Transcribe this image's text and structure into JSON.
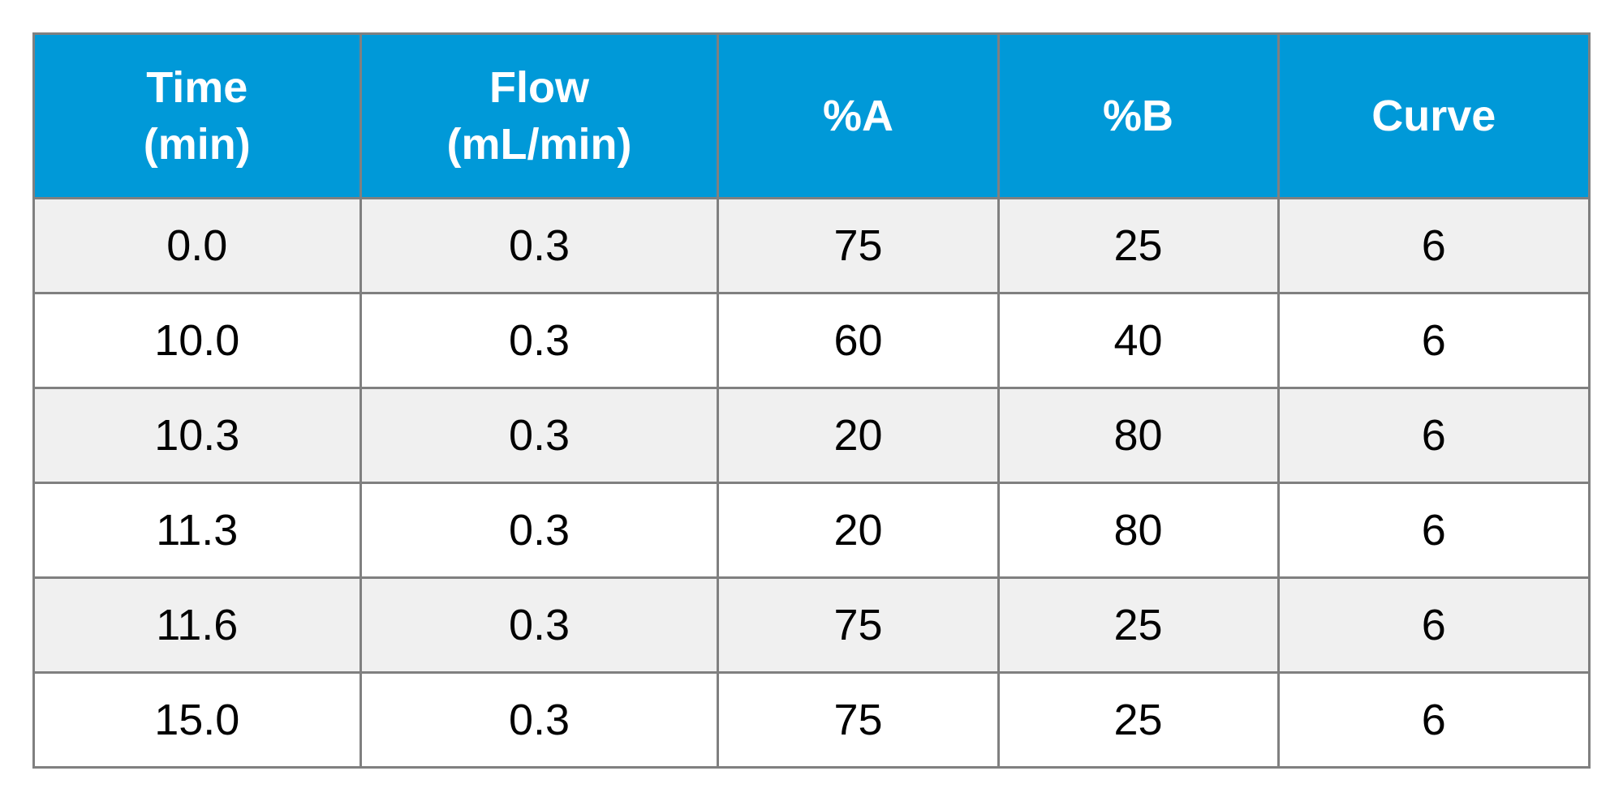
{
  "table": {
    "type": "table",
    "header_bg_color": "#0099d8",
    "header_text_color": "#ffffff",
    "header_font_size": 54,
    "header_font_weight": "bold",
    "cell_font_size": 54,
    "cell_text_color": "#000000",
    "row_odd_bg": "#f0f0f0",
    "row_even_bg": "#ffffff",
    "border_color": "#808080",
    "border_width": 3,
    "column_widths_pct": [
      21,
      23,
      18,
      18,
      20
    ],
    "columns": [
      "Time\n(min)",
      "Flow\n(mL/min)",
      "%A",
      "%B",
      "Curve"
    ],
    "rows": [
      [
        "0.0",
        "0.3",
        "75",
        "25",
        "6"
      ],
      [
        "10.0",
        "0.3",
        "60",
        "40",
        "6"
      ],
      [
        "10.3",
        "0.3",
        "20",
        "80",
        "6"
      ],
      [
        "11.3",
        "0.3",
        "20",
        "80",
        "6"
      ],
      [
        "11.6",
        "0.3",
        "75",
        "25",
        "6"
      ],
      [
        "15.0",
        "0.3",
        "75",
        "25",
        "6"
      ]
    ]
  }
}
